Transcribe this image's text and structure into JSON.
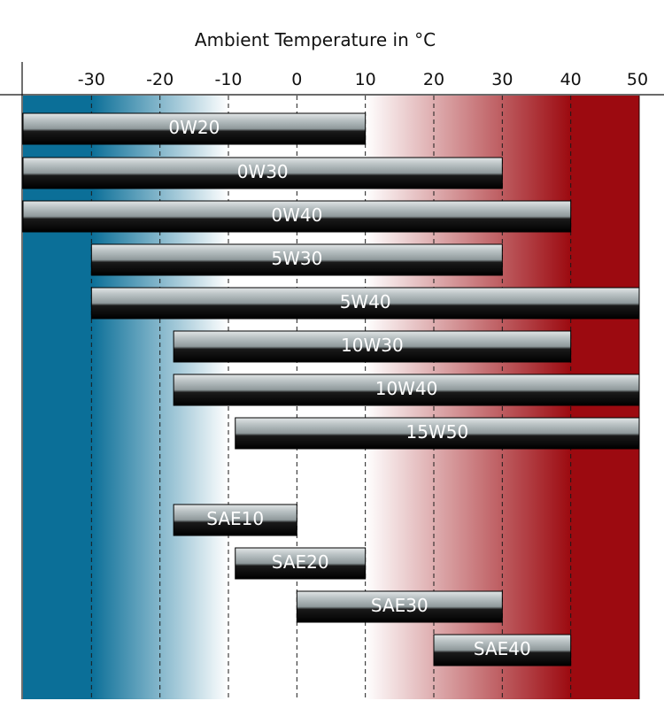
{
  "chart_data": {
    "type": "bar",
    "subtype": "range",
    "title": "Ambient Temperature in °C",
    "xlabel": "",
    "ylabel": "",
    "xlim": [
      -40,
      50
    ],
    "xticks": [
      -30,
      -20,
      -10,
      0,
      10,
      20,
      30,
      40,
      50
    ],
    "grid": true,
    "grid_style": "dashed vertical",
    "background_gradient": {
      "cold_color": "#0b6f98",
      "neutral_color": "#ffffff",
      "hot_color": "#9c0a10",
      "stops": [
        {
          "value": -40,
          "color": "cold"
        },
        {
          "value": -30,
          "color": "cold"
        },
        {
          "value": -10,
          "color": "neutral"
        },
        {
          "value": 10,
          "color": "neutral"
        },
        {
          "value": 40,
          "color": "hot"
        },
        {
          "value": 50,
          "color": "hot"
        }
      ]
    },
    "bars": [
      {
        "label": "0W20",
        "min": -40,
        "max": 10
      },
      {
        "label": "0W30",
        "min": -40,
        "max": 30
      },
      {
        "label": "0W40",
        "min": -40,
        "max": 40
      },
      {
        "label": "5W30",
        "min": -30,
        "max": 30
      },
      {
        "label": "5W40",
        "min": -30,
        "max": 50
      },
      {
        "label": "10W30",
        "min": -18,
        "max": 40
      },
      {
        "label": "10W40",
        "min": -18,
        "max": 50
      },
      {
        "label": "15W50",
        "min": -9,
        "max": 50
      },
      {
        "label": "SAE10",
        "min": -18,
        "max": 0
      },
      {
        "label": "SAE20",
        "min": -9,
        "max": 10
      },
      {
        "label": "SAE30",
        "min": 0,
        "max": 30
      },
      {
        "label": "SAE40",
        "min": 20,
        "max": 40
      }
    ]
  }
}
